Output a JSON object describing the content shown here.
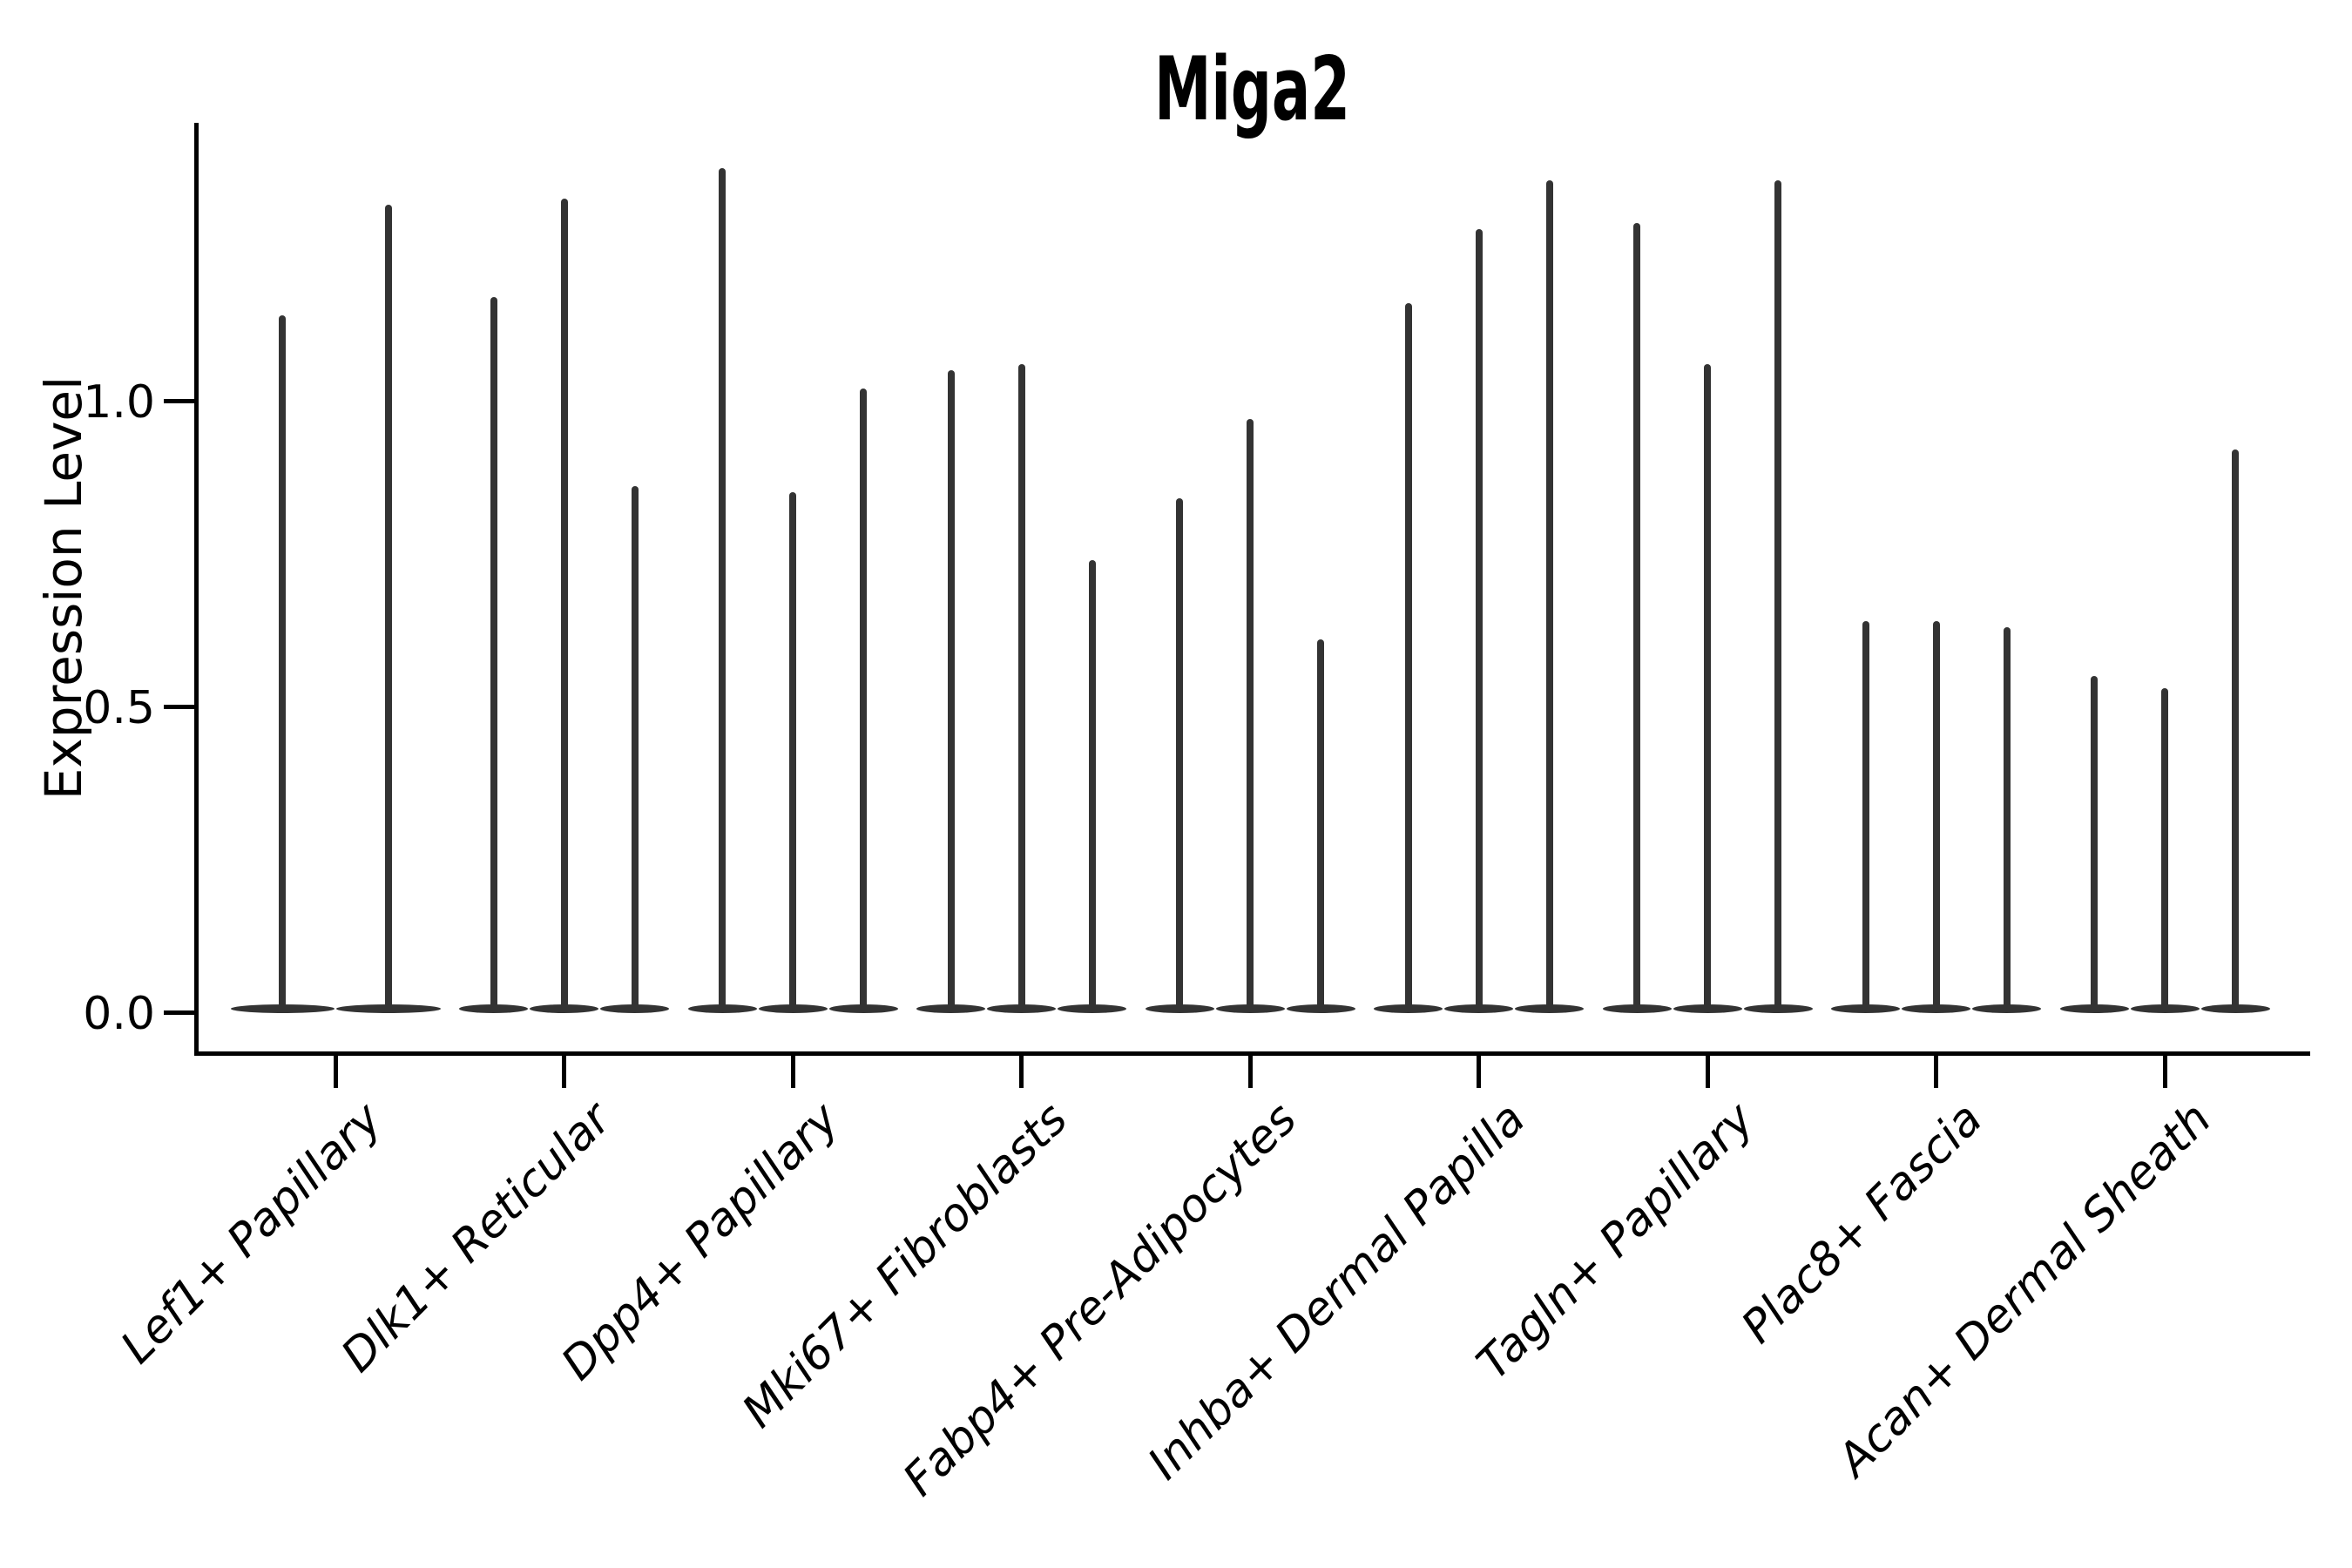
{
  "chart_data": {
    "type": "violin",
    "title": "Miga2",
    "ylabel": "Expression Level",
    "xlabel": "",
    "ytick_labels": [
      "0.0",
      "0.5",
      "1.0"
    ],
    "ytick_values": [
      0.0,
      0.5,
      1.0
    ],
    "ylim": [
      -0.068,
      1.454
    ],
    "grid": "off",
    "legend": "none",
    "violin_color": "#333333",
    "axis_color": "#000000",
    "categories": [
      "Lef1+ Papillary",
      "Dlk1+ Reticular",
      "Dpp4+ Papillary",
      "Mki67+ Fibroblasts",
      "Fabp4+ Pre-Adipocytes",
      "Inhba+ Dermal Papilla",
      "Tagln+ Papillary",
      "Plac8+ Fascia",
      "Acan+ Dermal Sheath"
    ],
    "series": [
      {
        "category": "Lef1+ Papillary",
        "violin_max_values": [
          1.14,
          1.32
        ]
      },
      {
        "category": "Dlk1+ Reticular",
        "violin_max_values": [
          1.17,
          1.33,
          0.86
        ]
      },
      {
        "category": "Dpp4+ Papillary",
        "violin_max_values": [
          1.38,
          0.85,
          1.02
        ]
      },
      {
        "category": "Mki67+ Fibroblasts",
        "violin_max_values": [
          1.05,
          1.06,
          0.74
        ]
      },
      {
        "category": "Fabp4+ Pre-Adipocytes",
        "violin_max_values": [
          0.84,
          0.97,
          0.61
        ]
      },
      {
        "category": "Inhba+ Dermal Papilla",
        "violin_max_values": [
          1.16,
          1.28,
          1.36
        ]
      },
      {
        "category": "Tagln+ Papillary",
        "violin_max_values": [
          1.29,
          1.06,
          1.36
        ]
      },
      {
        "category": "Plac8+ Fascia",
        "violin_max_values": [
          0.64,
          0.64,
          0.63
        ]
      },
      {
        "category": "Acan+ Dermal Sheath",
        "violin_max_values": [
          0.55,
          0.53,
          0.92
        ]
      }
    ],
    "violin_body_note": "each violin is a flat density base at 0 with a thin max spike"
  }
}
